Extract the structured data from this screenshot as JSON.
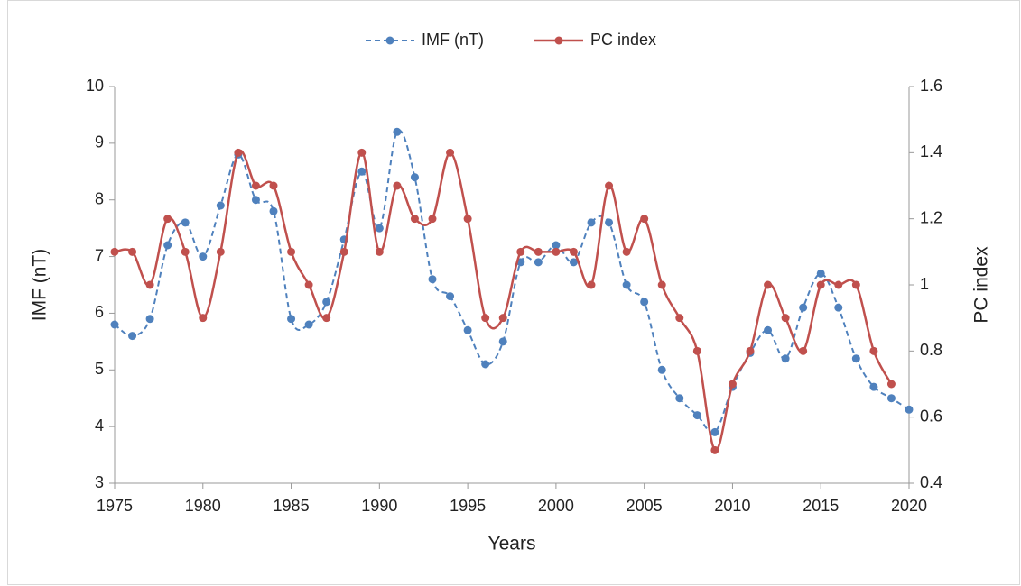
{
  "chart_data": {
    "type": "line",
    "x_label": "Years",
    "y_label": "IMF (nT)",
    "y2_label": "PC index",
    "x": [
      1975,
      1976,
      1977,
      1978,
      1979,
      1980,
      1981,
      1982,
      1983,
      1984,
      1985,
      1986,
      1987,
      1988,
      1989,
      1990,
      1991,
      1992,
      1993,
      1994,
      1995,
      1996,
      1997,
      1998,
      1999,
      2000,
      2001,
      2002,
      2003,
      2004,
      2005,
      2006,
      2007,
      2008,
      2009,
      2010,
      2011,
      2012,
      2013,
      2014,
      2015,
      2016,
      2017,
      2018,
      2019,
      2020
    ],
    "series": [
      {
        "name": "IMF (nT)",
        "color": "#4f81bd",
        "dashed": true,
        "axis": "y",
        "values": [
          5.8,
          5.6,
          5.9,
          7.2,
          7.6,
          7.0,
          7.9,
          8.8,
          8.0,
          7.8,
          5.9,
          5.8,
          6.2,
          7.3,
          8.5,
          7.5,
          9.2,
          8.4,
          6.6,
          6.3,
          5.7,
          5.1,
          5.5,
          6.9,
          6.9,
          7.2,
          6.9,
          7.6,
          7.6,
          6.5,
          6.2,
          5.0,
          4.5,
          4.2,
          3.9,
          4.7,
          5.3,
          5.7,
          5.2,
          6.1,
          6.7,
          6.1,
          5.2,
          4.7,
          4.5,
          4.3
        ]
      },
      {
        "name": "PC index",
        "color": "#c0504d",
        "dashed": false,
        "axis": "y2",
        "values": [
          1.1,
          1.1,
          1.0,
          1.2,
          1.1,
          0.9,
          1.1,
          1.4,
          1.3,
          1.3,
          1.1,
          1.0,
          0.9,
          1.1,
          1.4,
          1.1,
          1.3,
          1.2,
          1.2,
          1.4,
          1.2,
          0.9,
          0.9,
          1.1,
          1.1,
          1.1,
          1.1,
          1.0,
          1.3,
          1.1,
          1.2,
          1.0,
          0.9,
          0.8,
          0.5,
          0.7,
          0.8,
          1.0,
          0.9,
          0.8,
          1.0,
          1.0,
          1.0,
          0.8,
          0.7,
          null
        ]
      }
    ],
    "xlim": [
      1975,
      2020
    ],
    "xticks": [
      1975,
      1980,
      1985,
      1990,
      1995,
      2000,
      2005,
      2010,
      2015,
      2020
    ],
    "ylim": [
      3,
      10
    ],
    "yticks": [
      3,
      4,
      5,
      6,
      7,
      8,
      9,
      10
    ],
    "y2lim": [
      0.4,
      1.6
    ],
    "y2ticks": [
      0.4,
      0.6,
      0.8,
      1,
      1.2,
      1.4,
      1.6
    ],
    "legend": "top",
    "smooth": true
  }
}
